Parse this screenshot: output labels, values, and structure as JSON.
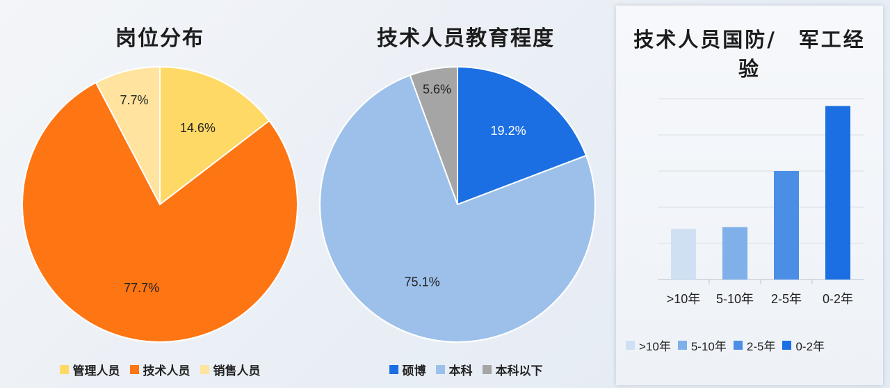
{
  "chart_data": [
    {
      "type": "pie",
      "title": "岗位分布",
      "labels": [
        "管理人员",
        "技术人员",
        "销售人员"
      ],
      "values": [
        14.6,
        77.7,
        7.7
      ],
      "value_labels": [
        "14.6%",
        "77.7%",
        "7.7%"
      ],
      "colors": [
        "#ffd966",
        "#fe7513",
        "#ffe39e"
      ],
      "legend": "bottom"
    },
    {
      "type": "pie",
      "title": "技术人员教育程度",
      "labels": [
        "硕博",
        "本科",
        "本科以下"
      ],
      "values": [
        19.2,
        75.1,
        5.6
      ],
      "value_labels": [
        "19.2%",
        "75.1%",
        "5.6%"
      ],
      "colors": [
        "#1b6fe3",
        "#9cc0ea",
        "#a5a5a5"
      ],
      "legend": "bottom"
    },
    {
      "type": "bar",
      "title": "技术人员国防/　军工经验",
      "categories": [
        ">10年",
        "5-10年",
        "2-5年",
        "0-2年"
      ],
      "values": [
        14,
        14.5,
        30,
        48
      ],
      "ylim": [
        0,
        50
      ],
      "grid": true,
      "colors": [
        "#cfe0f2",
        "#7fb0ea",
        "#4a8ee6",
        "#1b6fe3"
      ],
      "legend": "bottom"
    }
  ]
}
